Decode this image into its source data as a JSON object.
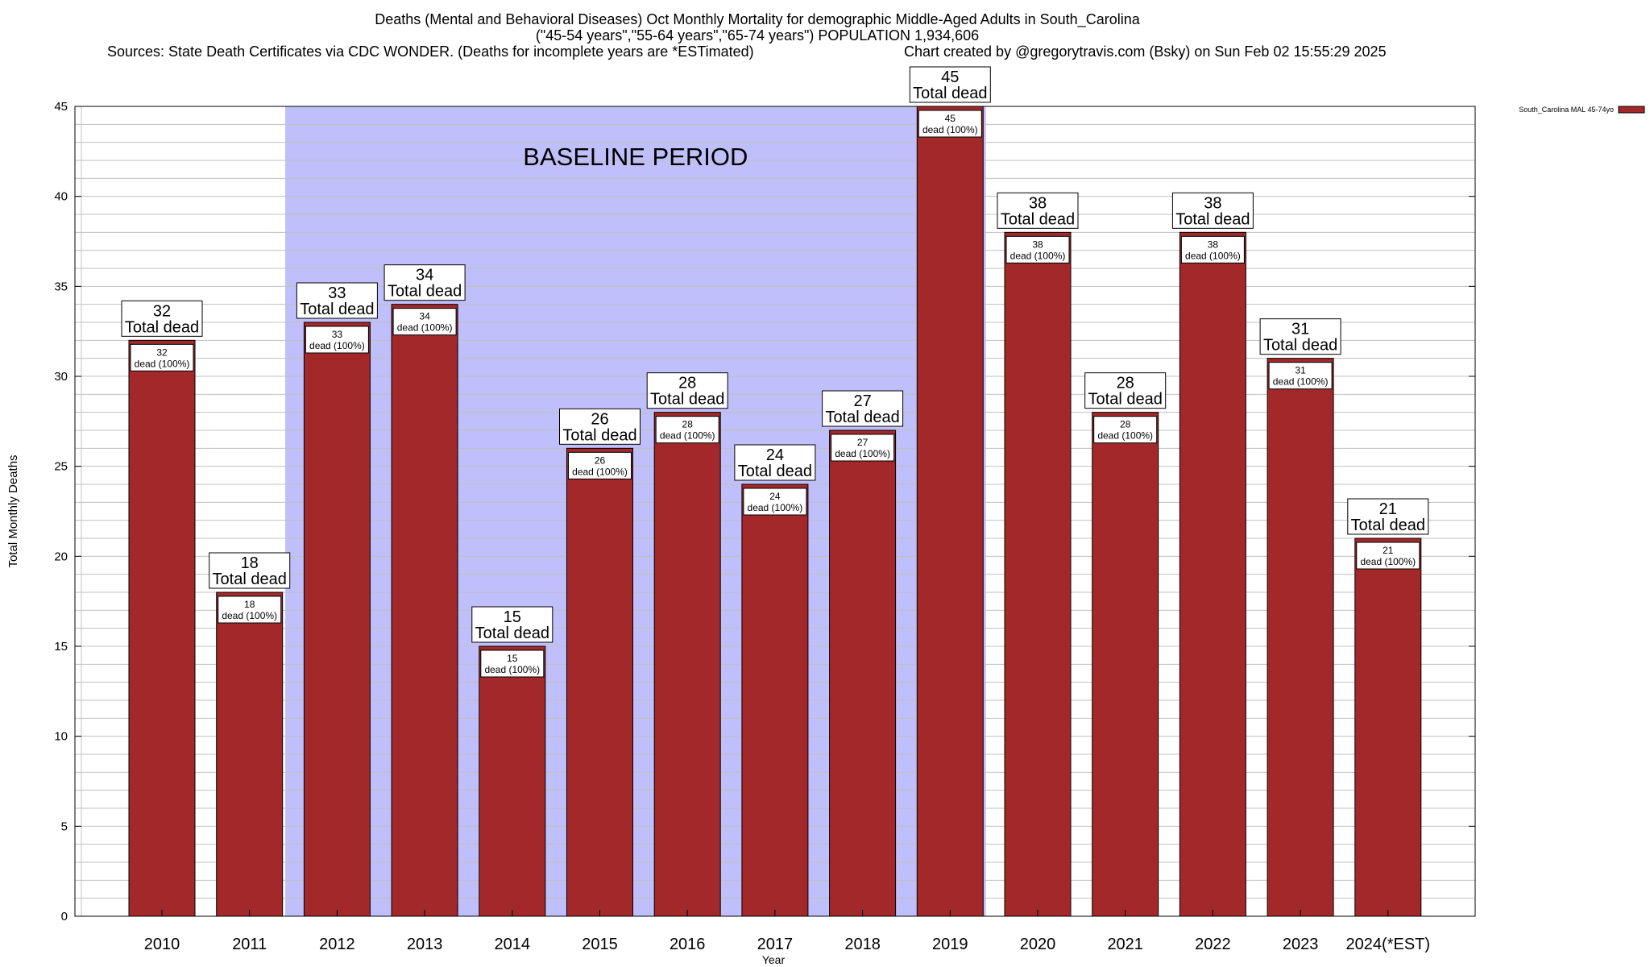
{
  "header": {
    "title_line1": "Deaths (Mental and Behavioral Diseases) Oct Monthly Mortality for demographic Middle-Aged Adults in South_Carolina",
    "title_line2": "(\"45-54 years\",\"55-64 years\",\"65-74 years\") POPULATION 1,934,606",
    "sources": "Sources: State Death Certificates via CDC WONDER. (Deaths for incomplete years are *ESTimated)",
    "credit": "Chart created by @gregorytravis.com (Bsky) on Sun Feb 02 15:55:29 2025"
  },
  "colors": {
    "bar": "#a3282a",
    "baseline_shade": "#bfbffb",
    "grid": "#c0c0c0"
  },
  "chart_data": {
    "type": "bar",
    "categories": [
      "2010",
      "2011",
      "2012",
      "2013",
      "2014",
      "2015",
      "2016",
      "2017",
      "2018",
      "2019",
      "2020",
      "2021",
      "2022",
      "2023",
      "2024(*EST)"
    ],
    "series": [
      {
        "name": "South_Carolina MAL 45-74yo",
        "values": [
          32,
          18,
          33,
          34,
          15,
          26,
          28,
          24,
          27,
          45,
          38,
          28,
          38,
          31,
          21
        ]
      }
    ],
    "ylabel": "Total Monthly Deaths",
    "xlabel": "Year",
    "ylim": [
      0,
      45
    ],
    "yticks": [
      0,
      5,
      10,
      15,
      20,
      25,
      30,
      35,
      40,
      45
    ],
    "grid": true,
    "legend_position": "top-right",
    "baseline": {
      "label": "BASELINE PERIOD",
      "from": "2012",
      "to": "2019"
    },
    "bar_top_label": "Total dead",
    "bar_inner_label": "dead (100%)"
  }
}
